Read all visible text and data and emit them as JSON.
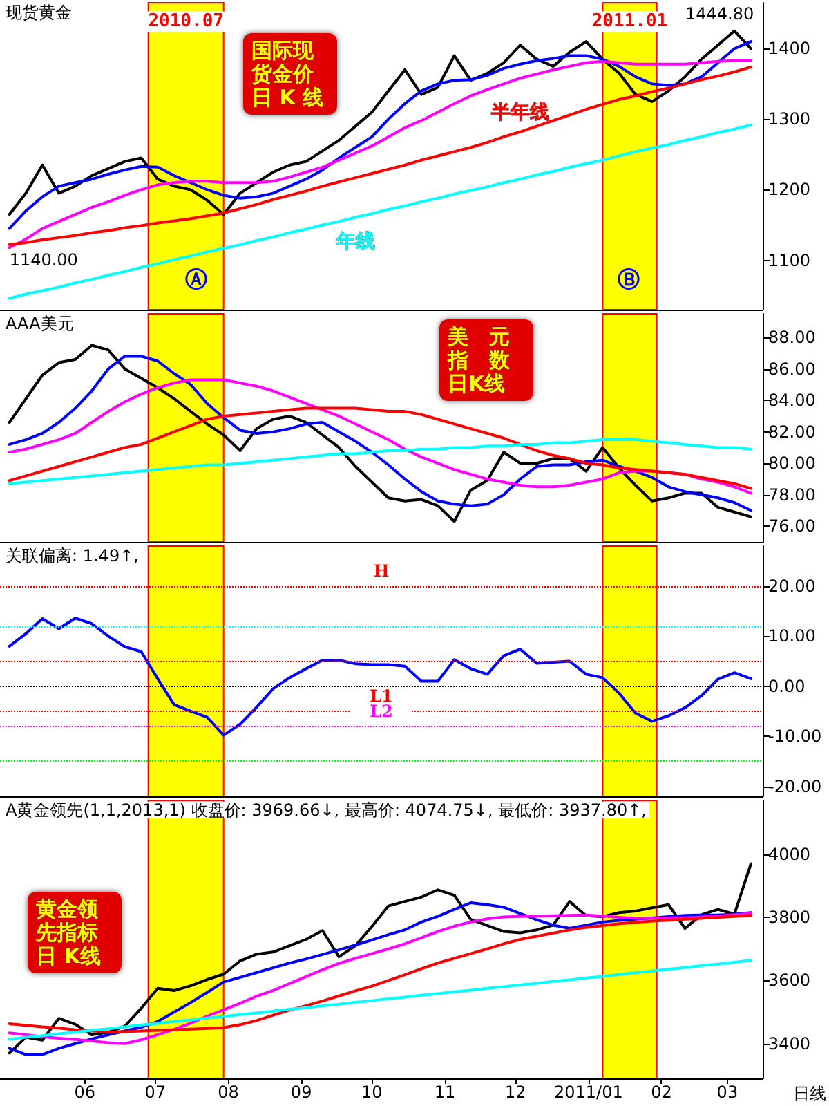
{
  "chart_data": [
    {
      "type": "line",
      "title": "现货黄金",
      "marker": "none",
      "tick_labels": "y",
      "x": [
        "2010-04-30",
        "2010-05-07",
        "2010-05-14",
        "2010-05-21",
        "2010-05-28",
        "2010-06-04",
        "2010-06-11",
        "2010-06-18",
        "2010-06-25",
        "2010-07-02",
        "2010-07-09",
        "2010-07-16",
        "2010-07-23",
        "2010-07-30",
        "2010-08-06",
        "2010-08-13",
        "2010-08-20",
        "2010-08-27",
        "2010-09-03",
        "2010-09-10",
        "2010-09-17",
        "2010-09-24",
        "2010-10-01",
        "2010-10-08",
        "2010-10-15",
        "2010-10-22",
        "2010-10-29",
        "2010-11-05",
        "2010-11-12",
        "2010-11-19",
        "2010-11-26",
        "2010-12-03",
        "2010-12-10",
        "2010-12-17",
        "2010-12-24",
        "2010-12-31",
        "2011-01-07",
        "2011-01-14",
        "2011-01-21",
        "2011-01-28",
        "2011-02-04",
        "2011-02-11",
        "2011-02-18",
        "2011-02-25",
        "2011-03-04",
        "2011-03-11"
      ],
      "xlim": [
        "2010-04-26",
        "2011-03-16"
      ],
      "xticks": [
        {
          "value": "2010-06-01",
          "label": null
        },
        {
          "value": "2010-07-01",
          "label": null
        },
        {
          "value": "2010-08-01",
          "label": null
        },
        {
          "value": "2010-09-01",
          "label": null
        },
        {
          "value": "2010-10-01",
          "label": null
        },
        {
          "value": "2010-11-01",
          "label": null
        },
        {
          "value": "2010-12-01",
          "label": null
        },
        {
          "value": "2011-01-01",
          "label": null
        },
        {
          "value": "2011-02-01",
          "label": null
        },
        {
          "value": "2011-03-01",
          "label": null
        }
      ],
      "ylim": [
        1030,
        1465
      ],
      "yticks": [
        1100,
        1200,
        1300,
        1400
      ],
      "series": [
        {
          "color": "#000000",
          "values": [
            1165,
            1195,
            1235,
            1195,
            1205,
            1220,
            1230,
            1240,
            1245,
            1215,
            1205,
            1200,
            1185,
            1165,
            1195,
            1210,
            1225,
            1235,
            1240,
            1255,
            1270,
            1290,
            1310,
            1340,
            1370,
            1335,
            1345,
            1390,
            1355,
            1365,
            1380,
            1405,
            1385,
            1375,
            1395,
            1410,
            1385,
            1365,
            1335,
            1325,
            1340,
            1360,
            1385,
            1405,
            1425,
            1400
          ]
        },
        {
          "color": "#0000ff",
          "values": [
            1145,
            1170,
            1190,
            1205,
            1210,
            1215,
            1222,
            1228,
            1233,
            1232,
            1220,
            1210,
            1200,
            1192,
            1188,
            1190,
            1195,
            1205,
            1215,
            1228,
            1245,
            1260,
            1275,
            1300,
            1322,
            1340,
            1350,
            1355,
            1356,
            1362,
            1372,
            1378,
            1383,
            1386,
            1390,
            1390,
            1385,
            1375,
            1360,
            1350,
            1348,
            1350,
            1360,
            1380,
            1400,
            1410
          ]
        },
        {
          "color": "#ff00ff",
          "values": [
            1118,
            1130,
            1145,
            1155,
            1165,
            1175,
            1183,
            1192,
            1200,
            1207,
            1210,
            1212,
            1212,
            1210,
            1210,
            1210,
            1212,
            1218,
            1225,
            1232,
            1242,
            1252,
            1262,
            1275,
            1288,
            1298,
            1310,
            1322,
            1333,
            1342,
            1350,
            1358,
            1364,
            1370,
            1375,
            1380,
            1382,
            1380,
            1378,
            1378,
            1378,
            1378,
            1380,
            1382,
            1383,
            1383
          ]
        },
        {
          "name": "半年线",
          "color": "#ff0000",
          "values": [
            1122,
            1125,
            1129,
            1132,
            1135,
            1139,
            1142,
            1146,
            1149,
            1153,
            1156,
            1159,
            1163,
            1167,
            1173,
            1179,
            1186,
            1192,
            1198,
            1205,
            1211,
            1217,
            1223,
            1229,
            1235,
            1242,
            1248,
            1254,
            1260,
            1267,
            1275,
            1282,
            1290,
            1298,
            1306,
            1314,
            1321,
            1328,
            1333,
            1339,
            1344,
            1350,
            1356,
            1361,
            1367,
            1374
          ]
        },
        {
          "name": "年线",
          "color": "#00ffff",
          "values": [
            1046,
            1052,
            1057,
            1062,
            1068,
            1073,
            1079,
            1084,
            1090,
            1095,
            1101,
            1106,
            1112,
            1117,
            1122,
            1128,
            1133,
            1139,
            1144,
            1150,
            1155,
            1161,
            1166,
            1172,
            1177,
            1183,
            1188,
            1194,
            1199,
            1204,
            1210,
            1215,
            1221,
            1226,
            1232,
            1237,
            1242,
            1248,
            1254,
            1259,
            1264,
            1270,
            1275,
            1281,
            1286,
            1292
          ]
        }
      ],
      "bands": [
        {
          "axis": "x",
          "from": "2010-06-28",
          "to": "2010-07-30",
          "label": "2010.07",
          "color": "#ffff00"
        },
        {
          "axis": "x",
          "from": "2011-01-07",
          "to": "2011-01-30",
          "label": "2011.01",
          "color": "#ffff00"
        }
      ],
      "annotations": [
        "国际现货金价日 K 线",
        "Ⓐ",
        "Ⓑ",
        "1444.80",
        {
          "text": "1140.00",
          "x": "2010-04-30",
          "y": 1140
        }
      ]
    },
    {
      "type": "line",
      "title": "AAA美元",
      "marker": "none",
      "tick_labels": "y",
      "x": [
        "2010-04-30",
        "2010-05-07",
        "2010-05-14",
        "2010-05-21",
        "2010-05-28",
        "2010-06-04",
        "2010-06-11",
        "2010-06-18",
        "2010-06-25",
        "2010-07-02",
        "2010-07-09",
        "2010-07-16",
        "2010-07-23",
        "2010-07-30",
        "2010-08-06",
        "2010-08-13",
        "2010-08-20",
        "2010-08-27",
        "2010-09-03",
        "2010-09-10",
        "2010-09-17",
        "2010-09-24",
        "2010-10-01",
        "2010-10-08",
        "2010-10-15",
        "2010-10-22",
        "2010-10-29",
        "2010-11-05",
        "2010-11-12",
        "2010-11-19",
        "2010-11-26",
        "2010-12-03",
        "2010-12-10",
        "2010-12-17",
        "2010-12-24",
        "2010-12-31",
        "2011-01-07",
        "2011-01-14",
        "2011-01-21",
        "2011-01-28",
        "2011-02-04",
        "2011-02-11",
        "2011-02-18",
        "2011-02-25",
        "2011-03-04",
        "2011-03-11"
      ],
      "xlim": [
        "2010-04-26",
        "2011-03-16"
      ],
      "xticks": [
        {
          "value": "2010-06-01",
          "label": null
        },
        {
          "value": "2010-07-01",
          "label": null
        },
        {
          "value": "2010-08-01",
          "label": null
        },
        {
          "value": "2010-09-01",
          "label": null
        },
        {
          "value": "2010-10-01",
          "label": null
        },
        {
          "value": "2010-11-01",
          "label": null
        },
        {
          "value": "2010-12-01",
          "label": null
        },
        {
          "value": "2011-01-01",
          "label": null
        },
        {
          "value": "2011-02-01",
          "label": null
        },
        {
          "value": "2011-03-01",
          "label": null
        }
      ],
      "ylim": [
        75,
        89.5
      ],
      "yticks": [
        {
          "value": 76,
          "label": "76.00"
        },
        {
          "value": 78,
          "label": "78.00"
        },
        {
          "value": 80,
          "label": "80.00"
        },
        {
          "value": 82,
          "label": "82.00"
        },
        {
          "value": 84,
          "label": "84.00"
        },
        {
          "value": 86,
          "label": "86.00"
        },
        {
          "value": 88,
          "label": "88.00"
        }
      ],
      "series": [
        {
          "color": "#000000",
          "values": [
            82.6,
            84.1,
            85.6,
            86.4,
            86.6,
            87.5,
            87.2,
            86.0,
            85.4,
            84.8,
            84.1,
            83.3,
            82.5,
            81.8,
            80.8,
            82.2,
            82.8,
            83.0,
            82.6,
            81.8,
            81.0,
            79.8,
            78.8,
            77.8,
            77.6,
            77.7,
            77.3,
            76.3,
            78.3,
            78.9,
            80.7,
            80.0,
            80.0,
            80.3,
            80.3,
            79.5,
            81.0,
            79.7,
            78.6,
            77.6,
            77.8,
            78.1,
            78.1,
            77.2,
            76.9,
            76.6
          ]
        },
        {
          "color": "#0000ff",
          "values": [
            81.2,
            81.5,
            81.9,
            82.6,
            83.5,
            84.6,
            86.0,
            86.8,
            86.8,
            86.5,
            85.7,
            85.0,
            83.8,
            82.9,
            82.1,
            81.9,
            82.0,
            82.2,
            82.5,
            82.6,
            82.0,
            81.4,
            80.7,
            79.9,
            79.0,
            78.2,
            77.6,
            77.4,
            77.3,
            77.4,
            78.0,
            79.0,
            79.8,
            79.9,
            79.9,
            80.1,
            80.2,
            79.8,
            79.5,
            79.1,
            78.5,
            78.2,
            78.0,
            77.8,
            77.5,
            77.0
          ]
        },
        {
          "color": "#ff00ff",
          "values": [
            80.7,
            80.9,
            81.2,
            81.5,
            81.9,
            82.6,
            83.3,
            83.9,
            84.4,
            84.8,
            85.1,
            85.3,
            85.3,
            85.3,
            85.1,
            84.9,
            84.6,
            84.2,
            83.8,
            83.4,
            83.0,
            82.5,
            82.0,
            81.5,
            80.9,
            80.4,
            80.0,
            79.6,
            79.3,
            79.0,
            78.8,
            78.6,
            78.5,
            78.5,
            78.6,
            78.8,
            79.0,
            79.4,
            79.5,
            79.5,
            79.4,
            79.3,
            79.0,
            78.8,
            78.5,
            78.1
          ]
        },
        {
          "color": "#ff0000",
          "values": [
            78.9,
            79.2,
            79.5,
            79.8,
            80.1,
            80.4,
            80.7,
            81.0,
            81.2,
            81.6,
            82.0,
            82.4,
            82.8,
            83.0,
            83.1,
            83.2,
            83.3,
            83.4,
            83.5,
            83.5,
            83.5,
            83.5,
            83.4,
            83.3,
            83.3,
            83.1,
            82.8,
            82.5,
            82.2,
            81.9,
            81.6,
            81.2,
            80.8,
            80.5,
            80.3,
            80.0,
            79.9,
            79.7,
            79.6,
            79.5,
            79.4,
            79.3,
            79.1,
            78.9,
            78.7,
            78.4
          ]
        },
        {
          "color": "#00ffff",
          "values": [
            78.7,
            78.8,
            78.9,
            79.0,
            79.1,
            79.2,
            79.3,
            79.4,
            79.5,
            79.6,
            79.7,
            79.8,
            79.9,
            79.9,
            80.0,
            80.1,
            80.2,
            80.3,
            80.4,
            80.5,
            80.6,
            80.6,
            80.7,
            80.8,
            80.8,
            80.9,
            80.9,
            81.0,
            81.0,
            81.1,
            81.1,
            81.2,
            81.2,
            81.3,
            81.3,
            81.4,
            81.5,
            81.5,
            81.5,
            81.4,
            81.3,
            81.2,
            81.1,
            81.0,
            81.0,
            80.9
          ]
        }
      ],
      "bands": [
        {
          "axis": "x",
          "from": "2010-06-28",
          "to": "2010-07-30",
          "color": "#ffff00"
        },
        {
          "axis": "x",
          "from": "2011-01-07",
          "to": "2011-01-30",
          "color": "#ffff00"
        }
      ],
      "annotations": [
        "美　元指　数日K线"
      ]
    },
    {
      "type": "line",
      "title": "关联偏离: 1.49↑,",
      "marker": "none",
      "tick_labels": "y",
      "x": [
        "2010-04-30",
        "2010-05-07",
        "2010-05-14",
        "2010-05-21",
        "2010-05-28",
        "2010-06-04",
        "2010-06-11",
        "2010-06-18",
        "2010-06-25",
        "2010-07-02",
        "2010-07-09",
        "2010-07-16",
        "2010-07-23",
        "2010-07-30",
        "2010-08-06",
        "2010-08-13",
        "2010-08-20",
        "2010-08-27",
        "2010-09-03",
        "2010-09-10",
        "2010-09-17",
        "2010-09-24",
        "2010-10-01",
        "2010-10-08",
        "2010-10-15",
        "2010-10-22",
        "2010-10-29",
        "2010-11-05",
        "2010-11-12",
        "2010-11-19",
        "2010-11-26",
        "2010-12-03",
        "2010-12-10",
        "2010-12-17",
        "2010-12-24",
        "2010-12-31",
        "2011-01-07",
        "2011-01-14",
        "2011-01-21",
        "2011-01-28",
        "2011-02-04",
        "2011-02-11",
        "2011-02-18",
        "2011-02-25",
        "2011-03-04",
        "2011-03-11"
      ],
      "xlim": [
        "2010-04-26",
        "2011-03-16"
      ],
      "xticks": [
        {
          "value": "2010-06-01",
          "label": null
        },
        {
          "value": "2010-07-01",
          "label": null
        },
        {
          "value": "2010-08-01",
          "label": null
        },
        {
          "value": "2010-09-01",
          "label": null
        },
        {
          "value": "2010-10-01",
          "label": null
        },
        {
          "value": "2010-11-01",
          "label": null
        },
        {
          "value": "2010-12-01",
          "label": null
        },
        {
          "value": "2011-01-01",
          "label": null
        },
        {
          "value": "2011-02-01",
          "label": null
        },
        {
          "value": "2011-03-01",
          "label": null
        }
      ],
      "ylim": [
        -22,
        28
      ],
      "yticks": [
        {
          "value": -20,
          "label": "-20.00"
        },
        {
          "value": -10,
          "label": "-10.00"
        },
        {
          "value": 0,
          "label": "0.00"
        },
        {
          "value": 10,
          "label": "10.00"
        },
        {
          "value": 20,
          "label": "20.00"
        }
      ],
      "series": [
        {
          "color": "#0000ff",
          "values": [
            8.0,
            10.5,
            13.5,
            11.5,
            13.6,
            12.5,
            10.0,
            7.9,
            6.9,
            1.5,
            -3.7,
            -5.0,
            -6.2,
            -9.8,
            -7.6,
            -4.2,
            -0.5,
            1.7,
            3.5,
            5.2,
            5.2,
            4.5,
            4.3,
            4.3,
            4.0,
            1.0,
            1.0,
            5.3,
            3.5,
            2.4,
            6.1,
            7.4,
            4.6,
            4.8,
            5.0,
            2.4,
            1.7,
            -1.4,
            -5.4,
            -7.0,
            -5.9,
            -4.3,
            -1.9,
            1.4,
            2.7,
            1.49
          ]
        }
      ],
      "ref_lines": [
        {
          "axis": "y",
          "value": 20,
          "label": "H",
          "color": "#ff0000",
          "line_style": "dotted"
        },
        {
          "axis": "y",
          "value": 12,
          "color": "#00ffff",
          "line_style": "dotted"
        },
        {
          "axis": "y",
          "value": 5,
          "color": "#ff0000",
          "line_style": "dotted"
        },
        {
          "axis": "y",
          "value": 0,
          "color": "#000000",
          "line_style": "dotted"
        },
        {
          "axis": "y",
          "value": -5,
          "label": "L1",
          "color": "#ff0000",
          "line_style": "dotted"
        },
        {
          "axis": "y",
          "value": -8,
          "label": "L2",
          "color": "#ff00ff",
          "line_style": "dotted"
        },
        {
          "axis": "y",
          "value": -15,
          "color": "#00ff00",
          "line_style": "dotted"
        }
      ],
      "bands": [
        {
          "axis": "x",
          "from": "2010-06-28",
          "to": "2010-07-30",
          "color": "#ffff00"
        },
        {
          "axis": "x",
          "from": "2011-01-07",
          "to": "2011-01-30",
          "color": "#ffff00"
        }
      ]
    },
    {
      "type": "line",
      "title": "A黄金领先(1,1,2013,1) 收盘价: 3969.66↓, 最高价: 4074.75↓, 最低价: 3937.80↑,",
      "marker": "none",
      "x": [
        "2010-04-30",
        "2010-05-07",
        "2010-05-14",
        "2010-05-21",
        "2010-05-28",
        "2010-06-04",
        "2010-06-11",
        "2010-06-18",
        "2010-06-25",
        "2010-07-02",
        "2010-07-09",
        "2010-07-16",
        "2010-07-23",
        "2010-07-30",
        "2010-08-06",
        "2010-08-13",
        "2010-08-20",
        "2010-08-27",
        "2010-09-03",
        "2010-09-10",
        "2010-09-17",
        "2010-09-24",
        "2010-10-01",
        "2010-10-08",
        "2010-10-15",
        "2010-10-22",
        "2010-10-29",
        "2010-11-05",
        "2010-11-12",
        "2010-11-19",
        "2010-11-26",
        "2010-12-03",
        "2010-12-10",
        "2010-12-17",
        "2010-12-24",
        "2010-12-31",
        "2011-01-07",
        "2011-01-14",
        "2011-01-21",
        "2011-01-28",
        "2011-02-04",
        "2011-02-11",
        "2011-02-18",
        "2011-02-25",
        "2011-03-04",
        "2011-03-11"
      ],
      "xlim": [
        "2010-04-26",
        "2011-03-16"
      ],
      "xticks": [
        {
          "value": "2010-06-01",
          "label": "06"
        },
        {
          "value": "2010-07-01",
          "label": "07"
        },
        {
          "value": "2010-08-01",
          "label": "08"
        },
        {
          "value": "2010-09-01",
          "label": "09"
        },
        {
          "value": "2010-10-01",
          "label": "10"
        },
        {
          "value": "2010-11-01",
          "label": "11"
        },
        {
          "value": "2010-12-01",
          "label": "12"
        },
        {
          "value": "2011-01-01",
          "label": "2011/01"
        },
        {
          "value": "2011-02-01",
          "label": "02"
        },
        {
          "value": "2011-03-01",
          "label": "03"
        }
      ],
      "ylim": [
        3290,
        4170
      ],
      "yticks": [
        3400,
        3600,
        3800,
        4000
      ],
      "series": [
        {
          "color": "#000000",
          "values": [
            3370,
            3420,
            3411,
            3480,
            3461,
            3428,
            3436,
            3455,
            3512,
            3575,
            3568,
            3583,
            3603,
            3620,
            3662,
            3683,
            3690,
            3710,
            3730,
            3758,
            3675,
            3710,
            3771,
            3836,
            3850,
            3864,
            3887,
            3870,
            3793,
            3774,
            3755,
            3751,
            3760,
            3775,
            3850,
            3805,
            3802,
            3815,
            3820,
            3830,
            3840,
            3765,
            3808,
            3825,
            3810,
            3969.66
          ]
        },
        {
          "color": "#0000ff",
          "values": [
            3385,
            3365,
            3365,
            3385,
            3400,
            3415,
            3428,
            3440,
            3452,
            3470,
            3500,
            3530,
            3562,
            3595,
            3610,
            3625,
            3640,
            3655,
            3668,
            3682,
            3697,
            3712,
            3728,
            3745,
            3760,
            3785,
            3803,
            3825,
            3846,
            3840,
            3832,
            3812,
            3792,
            3775,
            3765,
            3775,
            3785,
            3790,
            3794,
            3798,
            3802,
            3806,
            3807,
            3807,
            3810,
            3815
          ]
        },
        {
          "color": "#ff00ff",
          "values": [
            3434,
            3428,
            3422,
            3417,
            3413,
            3408,
            3403,
            3400,
            3412,
            3428,
            3445,
            3465,
            3487,
            3507,
            3528,
            3550,
            3568,
            3590,
            3612,
            3634,
            3654,
            3670,
            3685,
            3700,
            3716,
            3735,
            3755,
            3772,
            3785,
            3795,
            3801,
            3803,
            3804,
            3805,
            3806,
            3807,
            3804,
            3800,
            3797,
            3797,
            3798,
            3799,
            3801,
            3804,
            3808,
            3812
          ]
        },
        {
          "color": "#ff0000",
          "values": [
            3463,
            3458,
            3453,
            3449,
            3444,
            3440,
            3437,
            3438,
            3440,
            3442,
            3444,
            3446,
            3448,
            3451,
            3460,
            3473,
            3490,
            3506,
            3520,
            3535,
            3551,
            3567,
            3582,
            3600,
            3618,
            3637,
            3655,
            3670,
            3685,
            3700,
            3716,
            3730,
            3740,
            3750,
            3760,
            3768,
            3774,
            3780,
            3784,
            3788,
            3791,
            3794,
            3797,
            3800,
            3803,
            3806
          ]
        },
        {
          "color": "#00ffff",
          "values": [
            3414,
            3420,
            3425,
            3431,
            3436,
            3442,
            3447,
            3453,
            3459,
            3464,
            3470,
            3475,
            3481,
            3486,
            3492,
            3497,
            3503,
            3509,
            3514,
            3520,
            3525,
            3531,
            3536,
            3542,
            3547,
            3553,
            3558,
            3564,
            3569,
            3575,
            3580,
            3586,
            3591,
            3597,
            3602,
            3608,
            3613,
            3619,
            3625,
            3630,
            3636,
            3641,
            3647,
            3652,
            3658,
            3664
          ]
        }
      ],
      "bands": [
        {
          "axis": "x",
          "from": "2010-06-28",
          "to": "2010-07-30",
          "color": "#ffff00"
        },
        {
          "axis": "x",
          "from": "2011-01-07",
          "to": "2011-01-30",
          "color": "#ffff00"
        }
      ],
      "annotations": [
        "黄金领先指标日 K线",
        "日线"
      ]
    }
  ]
}
